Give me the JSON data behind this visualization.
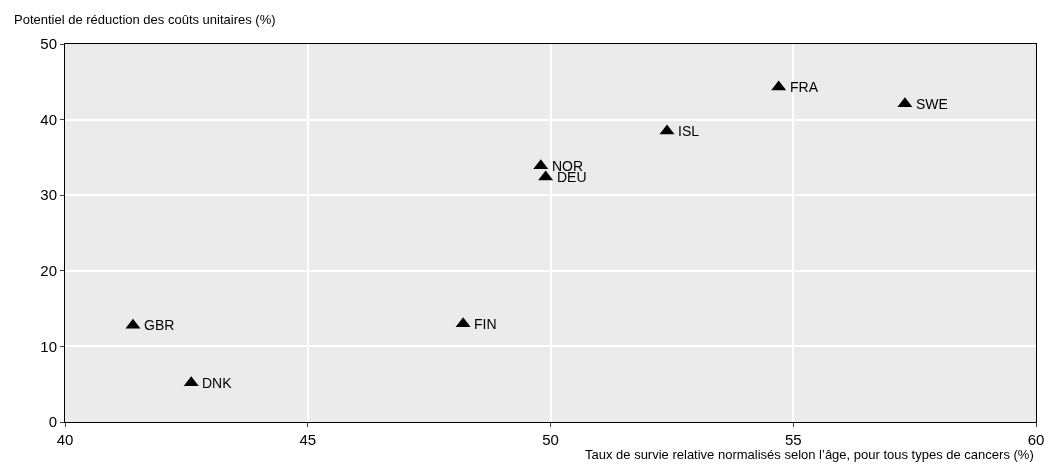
{
  "chart_data": {
    "type": "scatter",
    "xlabel": "Taux de survie relative normalisés selon l’âge, pour tous types de cancers (%)",
    "ylabel": "Potentiel de réduction des coûts unitaires (%)",
    "x": [
      41.4,
      42.6,
      48.2,
      49.8,
      49.9,
      52.4,
      54.7,
      57.3
    ],
    "series": [
      {
        "color": "#000000",
        "values": [
          12.8,
          5.2,
          13,
          33.9,
          32.4,
          38.5,
          44.3,
          42.1
        ]
      }
    ],
    "annotations": [
      {
        "text": "GBR",
        "x": 41.4,
        "y": 12.8
      },
      {
        "text": "DNK",
        "x": 42.6,
        "y": 5.2
      },
      {
        "text": "FIN",
        "x": 48.2,
        "y": 13
      },
      {
        "text": "NOR",
        "x": 49.8,
        "y": 33.9
      },
      {
        "text": "DEU",
        "x": 49.9,
        "y": 32.4
      },
      {
        "text": "ISL",
        "x": 52.4,
        "y": 38.5
      },
      {
        "text": "FRA",
        "x": 54.7,
        "y": 44.3
      },
      {
        "text": "SWE",
        "x": 57.3,
        "y": 42.1
      }
    ],
    "xlim": [
      40,
      60
    ],
    "xticks": [
      40,
      45,
      50,
      55,
      60
    ],
    "ylim": [
      0,
      50
    ],
    "yticks": [
      0,
      10,
      20,
      30,
      40,
      50
    ],
    "grid": true,
    "marker": "triangle"
  }
}
